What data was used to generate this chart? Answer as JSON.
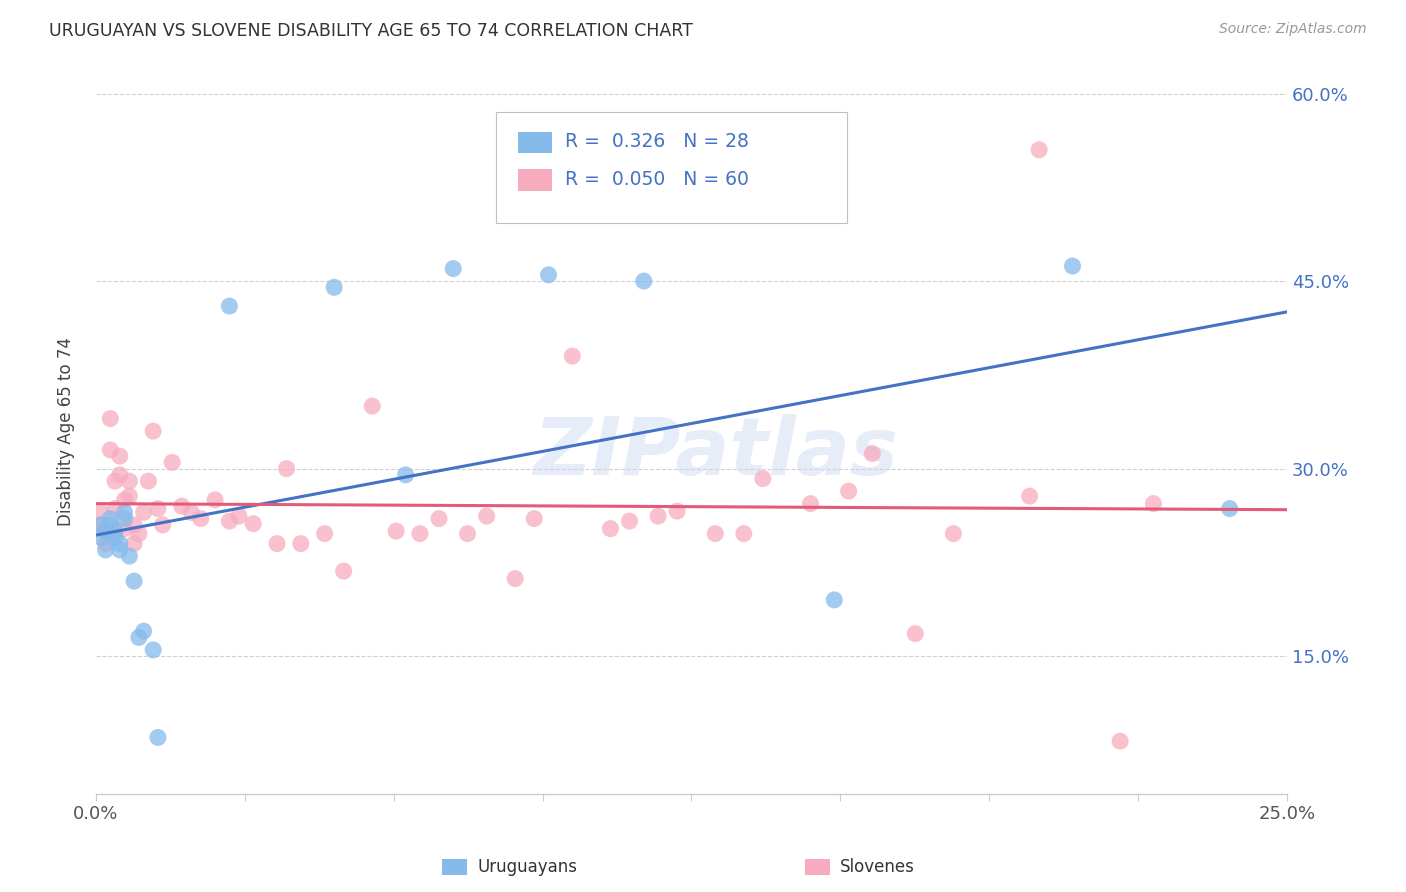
{
  "title": "URUGUAYAN VS SLOVENE DISABILITY AGE 65 TO 74 CORRELATION CHART",
  "source": "Source: ZipAtlas.com",
  "ylabel": "Disability Age 65 to 74",
  "xlim": [
    0.0,
    0.25
  ],
  "ylim": [
    0.04,
    0.62
  ],
  "xticks": [
    0.0,
    0.03125,
    0.0625,
    0.09375,
    0.125,
    0.15625,
    0.1875,
    0.21875,
    0.25
  ],
  "xtick_labels_show": [
    "0.0%",
    "",
    "",
    "",
    "",
    "",
    "",
    "",
    "25.0%"
  ],
  "yticks": [
    0.15,
    0.3,
    0.45,
    0.6
  ],
  "ytick_labels_right": [
    "15.0%",
    "30.0%",
    "45.0%",
    "60.0%"
  ],
  "legend_label1": "Uruguayans",
  "legend_label2": "Slovenes",
  "R1": 0.326,
  "N1": 28,
  "R2": 0.05,
  "N2": 60,
  "color_uruguayan": "#85BAEA",
  "color_slovene": "#F7ABBE",
  "color_line1": "#4472C4",
  "color_line2": "#E05C7A",
  "watermark_text": "ZIPatlas",
  "uruguayan_x": [
    0.001,
    0.001,
    0.002,
    0.002,
    0.003,
    0.003,
    0.003,
    0.004,
    0.004,
    0.005,
    0.005,
    0.006,
    0.006,
    0.007,
    0.008,
    0.009,
    0.01,
    0.012,
    0.013,
    0.028,
    0.05,
    0.065,
    0.075,
    0.095,
    0.115,
    0.155,
    0.205,
    0.238
  ],
  "uruguayan_y": [
    0.255,
    0.245,
    0.25,
    0.235,
    0.26,
    0.255,
    0.248,
    0.245,
    0.25,
    0.24,
    0.235,
    0.26,
    0.265,
    0.23,
    0.21,
    0.165,
    0.17,
    0.155,
    0.085,
    0.43,
    0.445,
    0.295,
    0.46,
    0.455,
    0.45,
    0.195,
    0.462,
    0.268
  ],
  "slovene_x": [
    0.001,
    0.001,
    0.002,
    0.002,
    0.003,
    0.003,
    0.004,
    0.004,
    0.005,
    0.005,
    0.006,
    0.006,
    0.007,
    0.007,
    0.008,
    0.008,
    0.009,
    0.01,
    0.011,
    0.012,
    0.013,
    0.014,
    0.016,
    0.018,
    0.02,
    0.022,
    0.025,
    0.028,
    0.03,
    0.033,
    0.038,
    0.04,
    0.043,
    0.048,
    0.052,
    0.058,
    0.063,
    0.068,
    0.072,
    0.078,
    0.082,
    0.088,
    0.092,
    0.1,
    0.108,
    0.112,
    0.118,
    0.122,
    0.13,
    0.136,
    0.14,
    0.15,
    0.158,
    0.163,
    0.172,
    0.18,
    0.196,
    0.198,
    0.215,
    0.222
  ],
  "slovene_y": [
    0.265,
    0.255,
    0.25,
    0.24,
    0.34,
    0.315,
    0.29,
    0.268,
    0.31,
    0.295,
    0.275,
    0.252,
    0.29,
    0.278,
    0.255,
    0.24,
    0.248,
    0.265,
    0.29,
    0.33,
    0.268,
    0.255,
    0.305,
    0.27,
    0.265,
    0.26,
    0.275,
    0.258,
    0.262,
    0.256,
    0.24,
    0.3,
    0.24,
    0.248,
    0.218,
    0.35,
    0.25,
    0.248,
    0.26,
    0.248,
    0.262,
    0.212,
    0.26,
    0.39,
    0.252,
    0.258,
    0.262,
    0.266,
    0.248,
    0.248,
    0.292,
    0.272,
    0.282,
    0.312,
    0.168,
    0.248,
    0.278,
    0.555,
    0.082,
    0.272
  ]
}
